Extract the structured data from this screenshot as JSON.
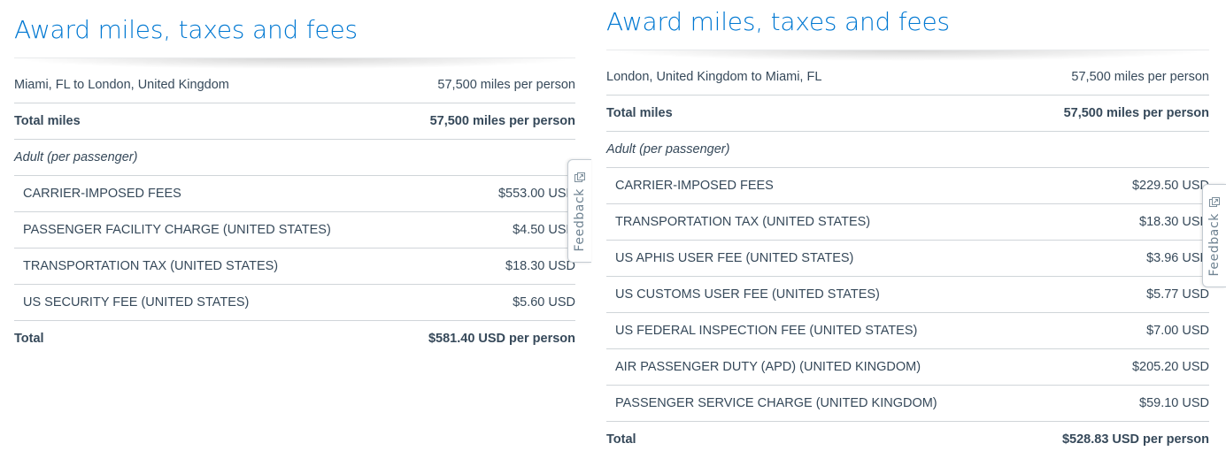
{
  "left": {
    "title": "Award miles, taxes and fees",
    "route": {
      "label": "Miami, FL to London, United Kingdom",
      "value": "57,500 miles per person"
    },
    "total_miles": {
      "label": "Total miles",
      "value": "57,500 miles per person"
    },
    "adult_label": "Adult (per passenger)",
    "fees": [
      {
        "label": "CARRIER-IMPOSED FEES",
        "value": "$553.00 USD"
      },
      {
        "label": "PASSENGER FACILITY CHARGE (UNITED STATES)",
        "value": "$4.50 USD"
      },
      {
        "label": "TRANSPORTATION TAX (UNITED STATES)",
        "value": "$18.30 USD"
      },
      {
        "label": "US SECURITY FEE (UNITED STATES)",
        "value": "$5.60 USD"
      }
    ],
    "total": {
      "label": "Total",
      "value": "$581.40 USD per person"
    }
  },
  "right": {
    "title": "Award miles, taxes and fees",
    "route": {
      "label": "London, United Kingdom to Miami, FL",
      "value": "57,500 miles per person"
    },
    "total_miles": {
      "label": "Total miles",
      "value": "57,500 miles per person"
    },
    "adult_label": "Adult (per passenger)",
    "fees": [
      {
        "label": "CARRIER-IMPOSED FEES",
        "value": "$229.50 USD"
      },
      {
        "label": "TRANSPORTATION TAX (UNITED STATES)",
        "value": "$18.30 USD"
      },
      {
        "label": "US APHIS USER FEE (UNITED STATES)",
        "value": "$3.96 USD"
      },
      {
        "label": "US CUSTOMS USER FEE (UNITED STATES)",
        "value": "$5.77 USD"
      },
      {
        "label": "US FEDERAL INSPECTION FEE (UNITED STATES)",
        "value": "$7.00 USD"
      },
      {
        "label": "AIR PASSENGER DUTY (APD) (UNITED KINGDOM)",
        "value": "$205.20 USD"
      },
      {
        "label": "PASSENGER SERVICE CHARGE (UNITED KINGDOM)",
        "value": "$59.10 USD"
      }
    ],
    "total": {
      "label": "Total",
      "value": "$528.83 USD per person"
    }
  },
  "feedback": {
    "label": "Feedback",
    "icon": "feedback-icon"
  }
}
